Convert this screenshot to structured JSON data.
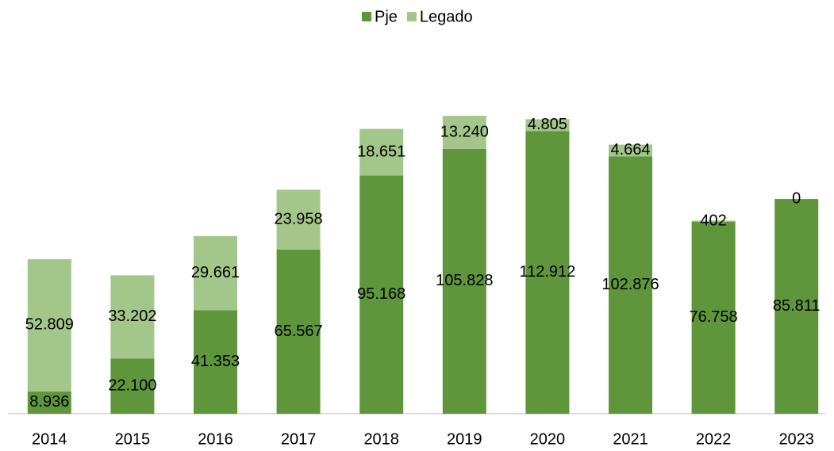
{
  "chart_data": {
    "type": "stacked_bar",
    "categories": [
      "2014",
      "2015",
      "2016",
      "2017",
      "2018",
      "2019",
      "2020",
      "2021",
      "2022",
      "2023"
    ],
    "series": [
      {
        "name": "Pje",
        "color": "#5f963b",
        "values": [
          8936,
          22100,
          41353,
          65567,
          95168,
          105828,
          112912,
          102876,
          76758,
          85811
        ],
        "value_labels": [
          "8.936",
          "22.100",
          "41.353",
          "65.567",
          "95.168",
          "105.828",
          "112.912",
          "102.876",
          "76.758",
          "85.811"
        ]
      },
      {
        "name": "Legado",
        "color": "#a3c68a",
        "values": [
          52809,
          33202,
          29661,
          23958,
          18651,
          13240,
          4805,
          4664,
          402,
          0
        ],
        "value_labels": [
          "52.809",
          "33.202",
          "29.661",
          "23.958",
          "18.651",
          "13.240",
          "4.805",
          "4.664",
          "402",
          "0"
        ]
      }
    ],
    "ylim": [
      0,
      140000
    ],
    "legend": "top"
  }
}
